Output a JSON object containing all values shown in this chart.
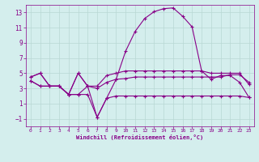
{
  "xlabel": "Windchill (Refroidissement éolien,°C)",
  "bg_color": "#d4eeed",
  "grid_color": "#b8d8d4",
  "line_color": "#880088",
  "xlim": [
    -0.5,
    23.5
  ],
  "ylim": [
    -2.0,
    14.0
  ],
  "xticks": [
    0,
    1,
    2,
    3,
    4,
    5,
    6,
    7,
    8,
    9,
    10,
    11,
    12,
    13,
    14,
    15,
    16,
    17,
    18,
    19,
    20,
    21,
    22,
    23
  ],
  "yticks": [
    -1,
    1,
    3,
    5,
    7,
    9,
    11,
    13
  ],
  "series1_x": [
    0,
    1,
    2,
    3,
    4,
    5,
    6,
    7,
    8,
    9,
    10,
    11,
    12,
    13,
    14,
    15,
    16,
    17,
    18,
    19,
    20,
    21,
    22,
    23
  ],
  "series1_y": [
    4.5,
    5.0,
    3.3,
    3.3,
    2.2,
    5.0,
    3.3,
    3.3,
    4.7,
    5.0,
    5.3,
    5.3,
    5.3,
    5.3,
    5.3,
    5.3,
    5.3,
    5.3,
    5.3,
    5.0,
    5.0,
    5.0,
    5.0,
    3.5
  ],
  "series2_x": [
    0,
    1,
    2,
    3,
    4,
    5,
    6,
    7,
    8,
    9,
    10,
    11,
    12,
    13,
    14,
    15,
    16,
    17,
    18,
    19,
    20,
    21,
    22,
    23
  ],
  "series2_y": [
    4.5,
    5.0,
    3.3,
    3.3,
    2.2,
    5.0,
    3.3,
    -0.8,
    1.7,
    4.2,
    7.9,
    10.5,
    12.2,
    13.1,
    13.5,
    13.6,
    12.5,
    11.1,
    5.3,
    4.2,
    4.7,
    4.7,
    3.8,
    1.8
  ],
  "series3_x": [
    0,
    1,
    2,
    3,
    4,
    5,
    6,
    7,
    8,
    9,
    10,
    11,
    12,
    13,
    14,
    15,
    16,
    17,
    18,
    19,
    20,
    21,
    22,
    23
  ],
  "series3_y": [
    4.0,
    3.3,
    3.3,
    3.3,
    2.2,
    2.2,
    3.3,
    3.0,
    3.8,
    4.2,
    4.3,
    4.5,
    4.5,
    4.5,
    4.5,
    4.5,
    4.5,
    4.5,
    4.5,
    4.5,
    4.5,
    4.8,
    4.8,
    3.8
  ],
  "series4_x": [
    0,
    1,
    2,
    3,
    4,
    5,
    6,
    7,
    8,
    9,
    10,
    11,
    12,
    13,
    14,
    15,
    16,
    17,
    18,
    19,
    20,
    21,
    22,
    23
  ],
  "series4_y": [
    4.0,
    3.3,
    3.3,
    3.3,
    2.2,
    2.2,
    2.2,
    -0.8,
    1.7,
    2.0,
    2.0,
    2.0,
    2.0,
    2.0,
    2.0,
    2.0,
    2.0,
    2.0,
    2.0,
    2.0,
    2.0,
    2.0,
    2.0,
    1.8
  ]
}
